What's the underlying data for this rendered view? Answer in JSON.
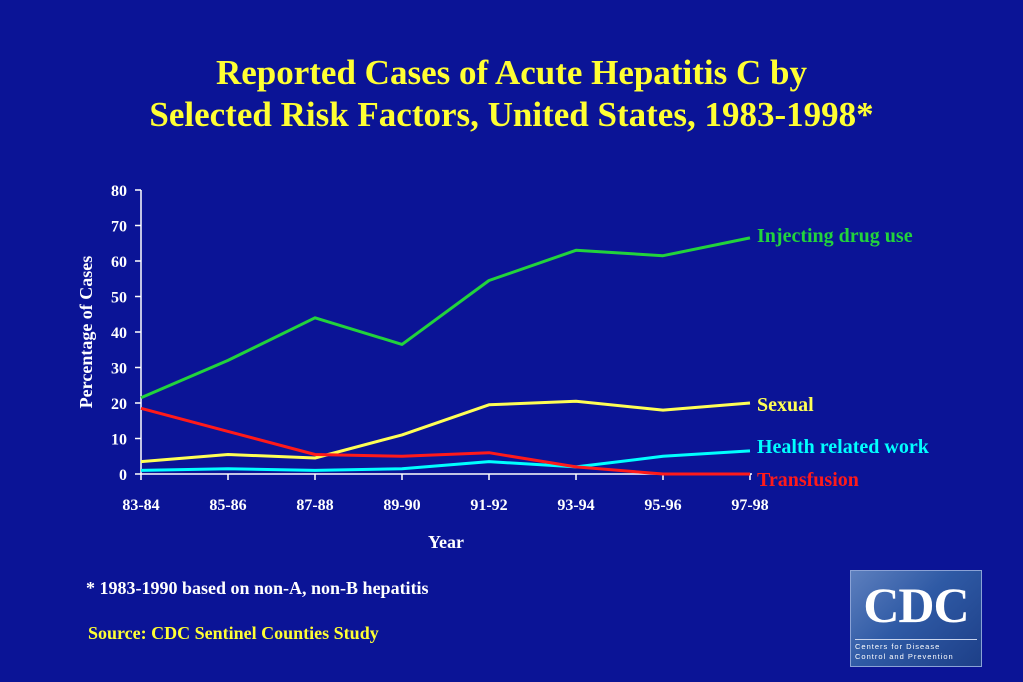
{
  "title_line1": "Reported Cases of Acute Hepatitis C by",
  "title_line2": "Selected Risk Factors, United States, 1983-1998*",
  "footnote": "* 1983-1990 based on non-A, non-B hepatitis",
  "source": "Source: CDC Sentinel Counties Study",
  "logo": {
    "text": "CDC",
    "sub1": "Centers for Disease",
    "sub2": "Control and Prevention"
  },
  "colors": {
    "background": "#0b1496",
    "title": "#ffff33",
    "axis": "#ffffff"
  },
  "chart_data": {
    "type": "line",
    "title": "Reported Cases of Acute Hepatitis C by Selected Risk Factors, United States, 1983-1998*",
    "xlabel": "Year",
    "ylabel": "Percentage of Cases",
    "categories": [
      "83-84",
      "85-86",
      "87-88",
      "89-90",
      "91-92",
      "93-94",
      "95-96",
      "97-98"
    ],
    "ylim": [
      0,
      80
    ],
    "yticks": [
      0,
      10,
      20,
      30,
      40,
      50,
      60,
      70,
      80
    ],
    "grid": false,
    "legend": "right (direct labels at line ends)",
    "series": [
      {
        "name": "Injecting drug use",
        "color": "#22d33c",
        "values": [
          21.5,
          32,
          44,
          36.5,
          54.5,
          63,
          61.5,
          66.5
        ]
      },
      {
        "name": "Sexual",
        "color": "#ffff55",
        "values": [
          3.5,
          5.5,
          4.5,
          11,
          19.5,
          20.5,
          18,
          20
        ]
      },
      {
        "name": "Health related work",
        "color": "#00ffff",
        "values": [
          1,
          1.5,
          1,
          1.5,
          3.5,
          2,
          5,
          6.5
        ]
      },
      {
        "name": "Transfusion",
        "color": "#ff1a1a",
        "values": [
          18.5,
          12,
          5.5,
          5,
          6,
          2,
          0,
          0
        ]
      }
    ]
  }
}
